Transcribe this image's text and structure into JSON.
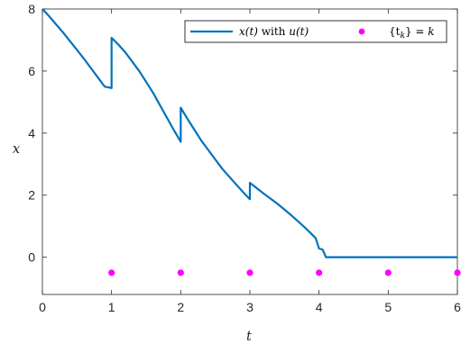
{
  "chart_data": {
    "type": "line",
    "xlabel": "t",
    "ylabel": "x",
    "xlim": [
      0,
      6
    ],
    "ylim": [
      -1.2,
      8
    ],
    "xticks": [
      "0",
      "1",
      "2",
      "3",
      "4",
      "5",
      "6"
    ],
    "yticks": [
      "0",
      "2",
      "4",
      "6",
      "8"
    ],
    "grid": false,
    "legend_position": "top-right",
    "colors": {
      "line": "#0072bd",
      "markers": "#ff00ff"
    },
    "series": [
      {
        "name": "x(t) with u(t)",
        "kind": "line",
        "x": [
          0,
          0.1,
          0.2,
          0.3,
          0.4,
          0.5,
          0.6,
          0.7,
          0.8,
          0.9,
          1.0,
          1.0,
          1.1,
          1.2,
          1.3,
          1.4,
          1.5,
          1.6,
          1.7,
          1.8,
          1.9,
          2.0,
          2.0,
          2.1,
          2.2,
          2.3,
          2.4,
          2.5,
          2.6,
          2.7,
          2.8,
          2.9,
          3.0,
          3.0,
          3.2,
          3.4,
          3.6,
          3.8,
          3.95,
          4.0,
          4.05,
          4.08,
          4.1,
          5.0,
          6.0
        ],
        "y": [
          8.0,
          7.76,
          7.5,
          7.24,
          6.96,
          6.68,
          6.4,
          6.1,
          5.8,
          5.5,
          5.45,
          7.07,
          6.85,
          6.6,
          6.3,
          6.0,
          5.65,
          5.3,
          4.9,
          4.5,
          4.1,
          3.72,
          4.82,
          4.45,
          4.1,
          3.75,
          3.45,
          3.15,
          2.85,
          2.6,
          2.35,
          2.1,
          1.87,
          2.4,
          2.05,
          1.72,
          1.35,
          0.95,
          0.62,
          0.28,
          0.25,
          0.1,
          0.0,
          0.0,
          0.0
        ]
      },
      {
        "name": "{t_k} = k",
        "kind": "scatter",
        "x": [
          1,
          2,
          3,
          4,
          5,
          6
        ],
        "y": [
          -0.5,
          -0.5,
          -0.5,
          -0.5,
          -0.5,
          -0.5
        ]
      }
    ],
    "legend": {
      "line_label_parts": [
        "x(t)",
        " with ",
        "u(t)"
      ],
      "marker_label_parts": [
        "{t",
        "k",
        "} = ",
        "k"
      ]
    }
  }
}
